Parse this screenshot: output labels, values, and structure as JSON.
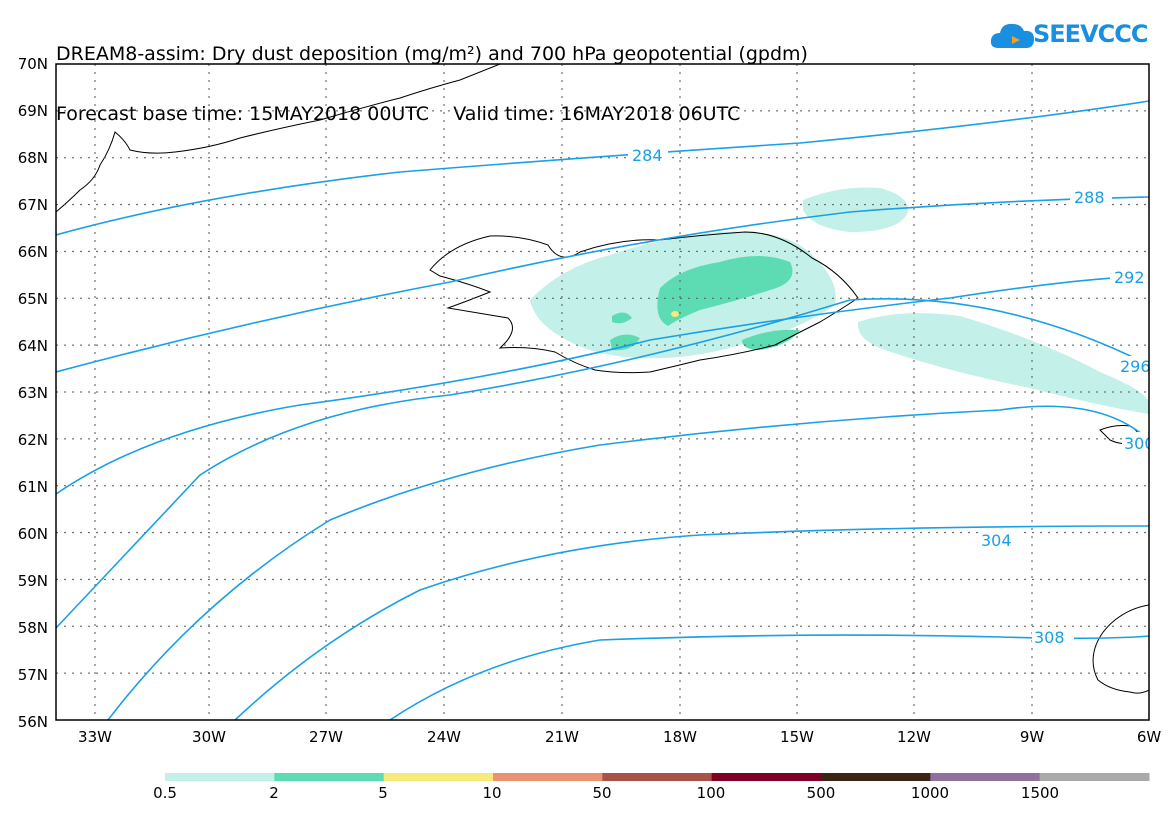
{
  "title": {
    "line1": "DREAM8-assim: Dry dust deposition (mg/m²) and 700 hPa geopotential (gpdm)",
    "line2": "Forecast base time: 15MAY2018 00UTC    Valid time: 16MAY2018 06UTC"
  },
  "logo": {
    "text": "SEEVCCC",
    "icon": "cloud-logo-icon"
  },
  "map": {
    "lat_labels": [
      "70N",
      "69N",
      "68N",
      "67N",
      "66N",
      "65N",
      "64N",
      "63N",
      "62N",
      "61N",
      "60N",
      "59N",
      "58N",
      "57N",
      "56N"
    ],
    "lon_labels": [
      "33W",
      "30W",
      "27W",
      "24W",
      "21W",
      "18W",
      "15W",
      "12W",
      "9W",
      "6W"
    ],
    "grid": "dotted",
    "contour_color": "#1aa0e6",
    "contours": [
      {
        "value": 284,
        "label": "284"
      },
      {
        "value": 288,
        "label": "288"
      },
      {
        "value": 292,
        "label": "292"
      },
      {
        "value": 296,
        "label": "296"
      },
      {
        "value": 300,
        "label": "300"
      },
      {
        "value": 304,
        "label": "304"
      },
      {
        "value": 308,
        "label": "308"
      }
    ]
  },
  "legend": {
    "labels": [
      "0.5",
      "2",
      "5",
      "10",
      "50",
      "100",
      "500",
      "1000",
      "1500"
    ],
    "colors": [
      "#c3f0e8",
      "#5ddcb4",
      "#f7e97a",
      "#ea9272",
      "#a8524a",
      "#800024",
      "#3c2414",
      "#91709f",
      "#aaaaaa"
    ]
  }
}
